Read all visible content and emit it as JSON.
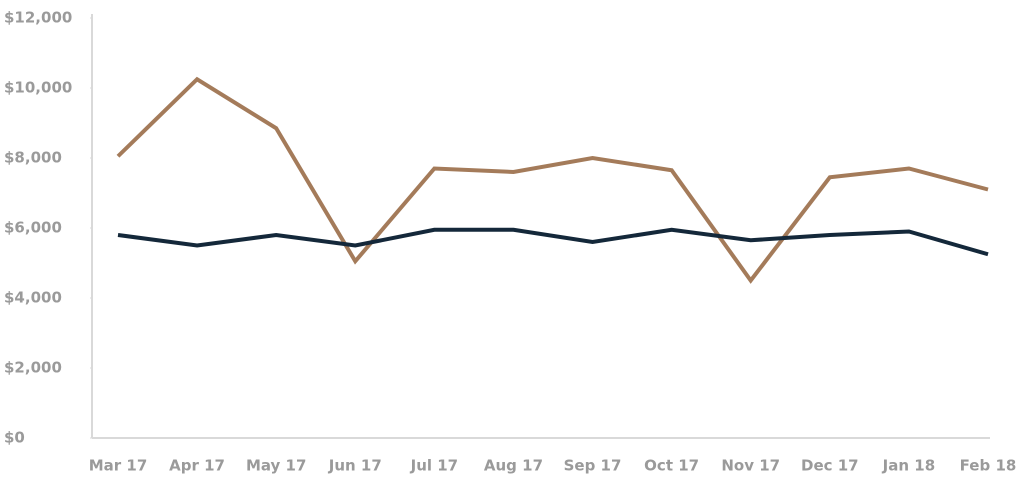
{
  "chart_data": {
    "type": "line",
    "categories": [
      "Mar 17",
      "Apr 17",
      "May 17",
      "Jun 17",
      "Jul 17",
      "Aug 17",
      "Sep 17",
      "Oct 17",
      "Nov 17",
      "Dec 17",
      "Jan 18",
      "Feb 18"
    ],
    "series": [
      {
        "color": "#a47b5a",
        "values": [
          8050,
          10250,
          8850,
          5050,
          7700,
          7600,
          8000,
          7650,
          4500,
          7450,
          7700,
          7100
        ]
      },
      {
        "color": "#14283a",
        "values": [
          5800,
          5500,
          5800,
          5500,
          5950,
          5950,
          5600,
          5950,
          5650,
          5800,
          5900,
          5250
        ]
      }
    ],
    "ylim": [
      0,
      12000
    ],
    "yticks": [
      {
        "value": 0,
        "label": "$0"
      },
      {
        "value": 2000,
        "label": "$2,000"
      },
      {
        "value": 4000,
        "label": "$4,000"
      },
      {
        "value": 6000,
        "label": "$6,000"
      },
      {
        "value": 8000,
        "label": "$8,000"
      },
      {
        "value": 10000,
        "label": "$10,000"
      },
      {
        "value": 12000,
        "label": "$12,000"
      }
    ],
    "grid": false
  }
}
